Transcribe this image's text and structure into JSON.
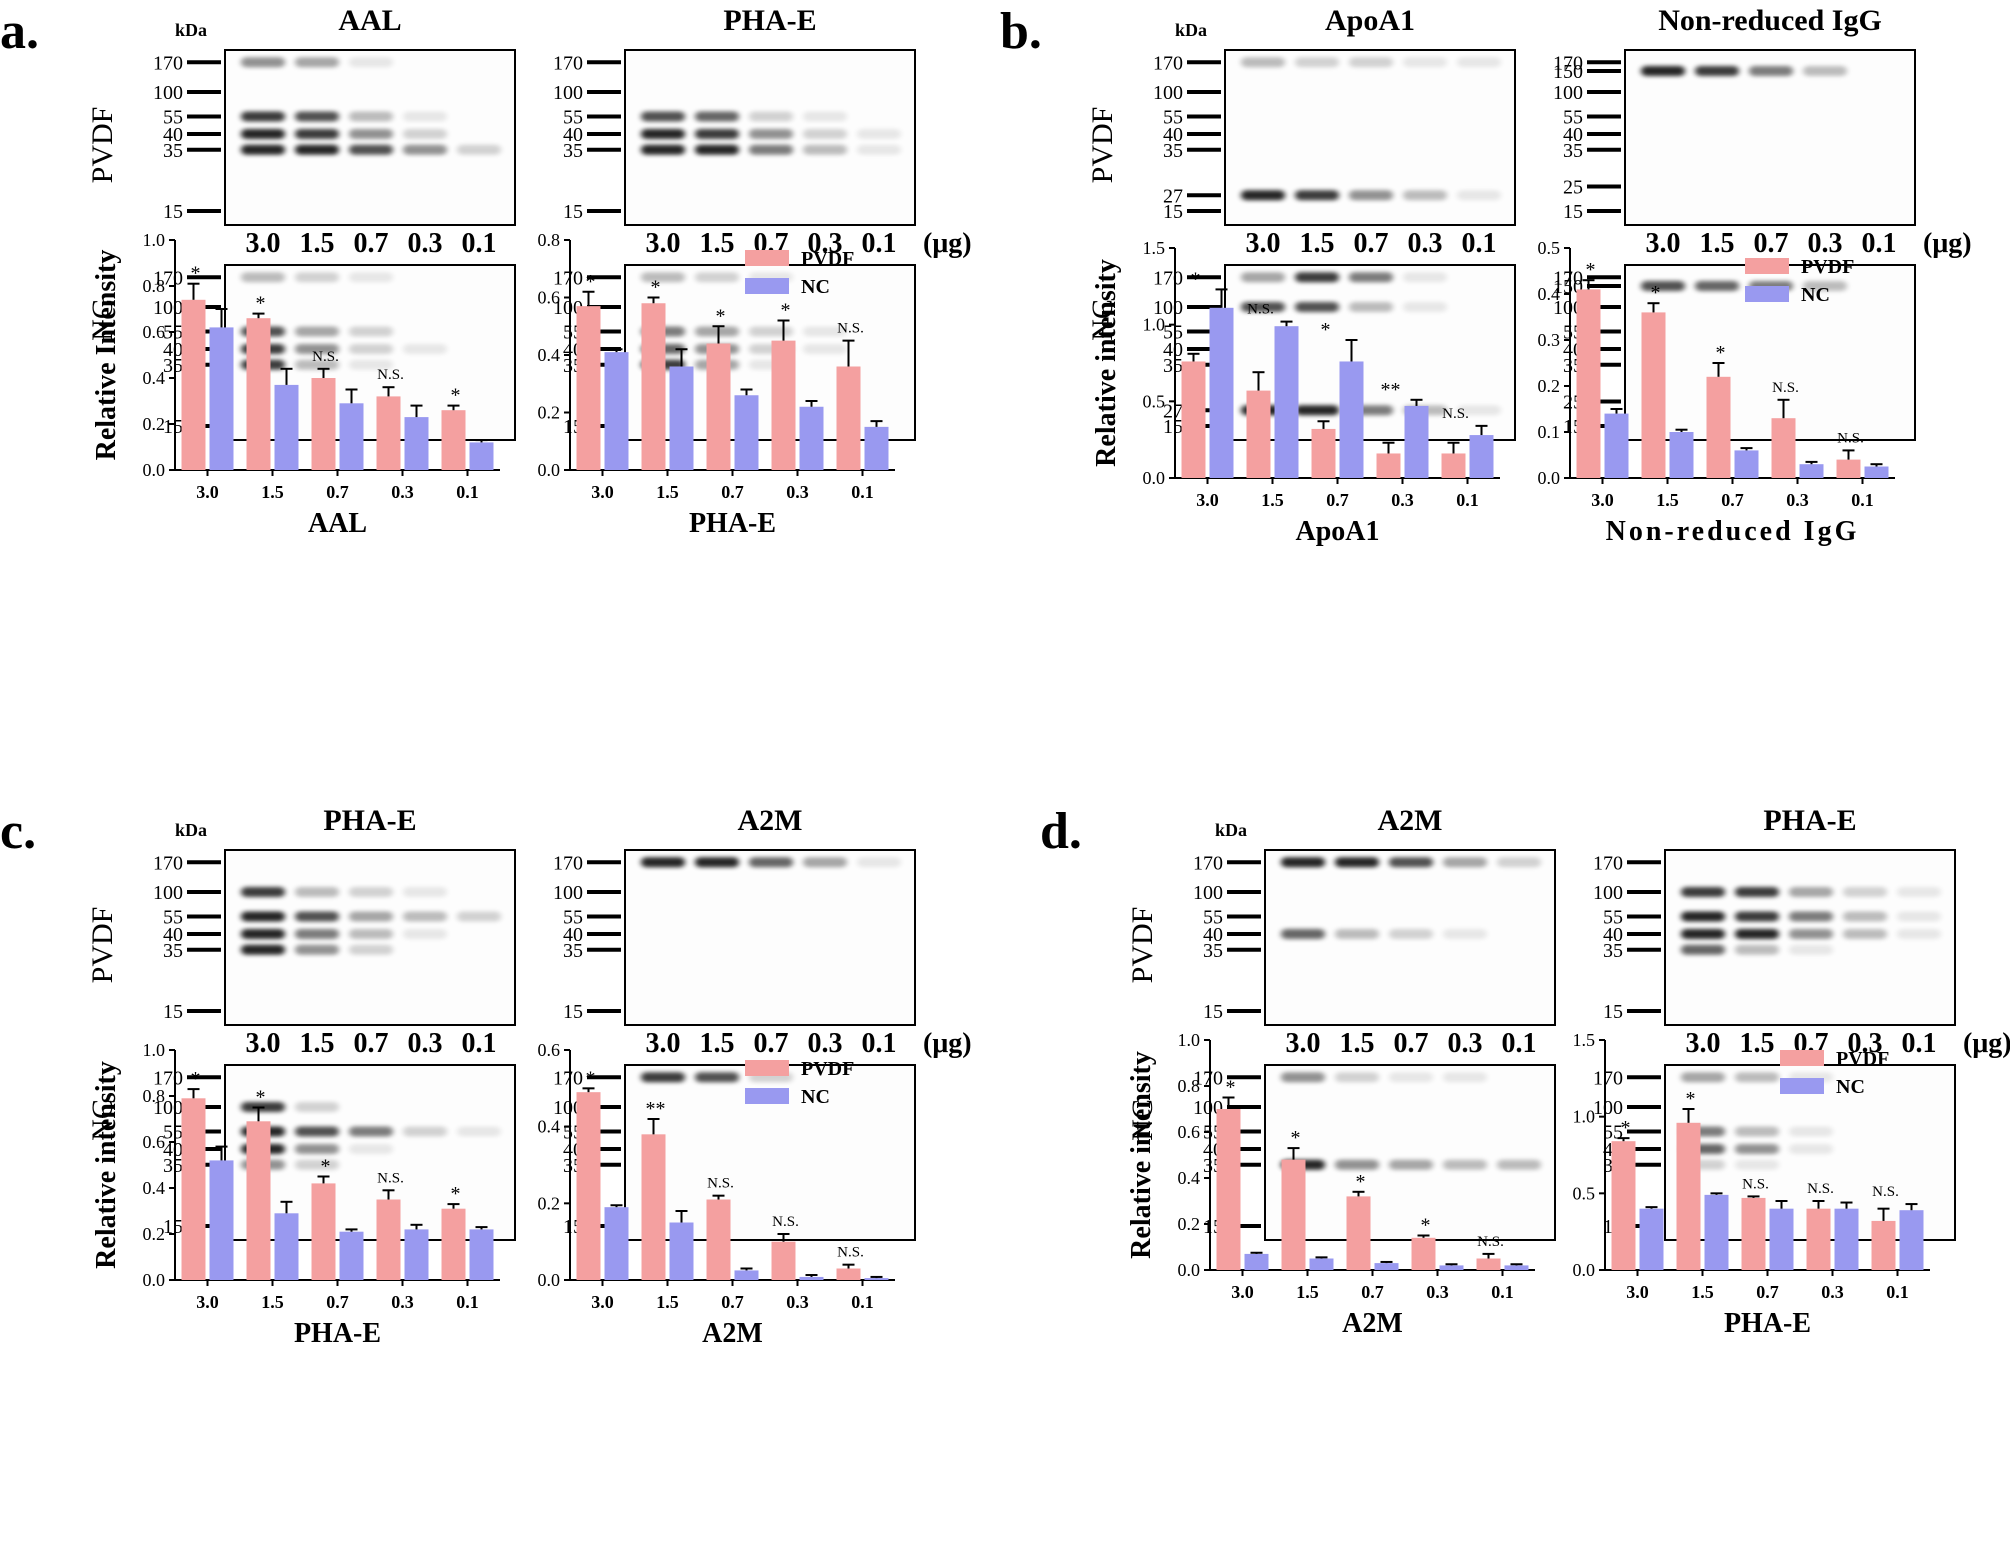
{
  "colors": {
    "pvdf": "#F4A0A0",
    "nc": "#9999F0",
    "err": "#000000"
  },
  "kda_label": "kDa",
  "row_labels": {
    "pvdf": "PVDF",
    "nc": "NC"
  },
  "loads_label": [
    "3.0",
    "1.5",
    "0.7",
    "0.3",
    "0.1"
  ],
  "unit_label": "(μg)",
  "legend": {
    "pvdf": "PVDF",
    "nc": "NC"
  },
  "panels": [
    {
      "letter": "a.",
      "blots": [
        {
          "title": "AAL",
          "pvdf_markers": [
            "170",
            "100",
            "55",
            "40",
            "35",
            "15"
          ],
          "nc_markers": [
            "170",
            "100",
            "55",
            "40",
            "35",
            "15"
          ]
        },
        {
          "title": "PHA-E",
          "pvdf_markers": [
            "170",
            "100",
            "55",
            "40",
            "35",
            "15"
          ],
          "nc_markers": [
            "170",
            "100",
            "55",
            "40",
            "35",
            "15"
          ]
        }
      ],
      "show_unit_on_blot": 1
    },
    {
      "letter": "b.",
      "blots": [
        {
          "title": "ApoA1",
          "pvdf_markers": [
            "170",
            "100",
            "55",
            "40",
            "35",
            "27",
            "15"
          ],
          "nc_markers": [
            "170",
            "100",
            "55",
            "40",
            "35",
            "27",
            "15"
          ]
        },
        {
          "title": "Non-reduced IgG",
          "pvdf_markers": [
            "170",
            "150",
            "100",
            "55",
            "40",
            "35",
            "25",
            "15"
          ],
          "nc_markers": [
            "170",
            "150",
            "100",
            "55",
            "40",
            "35",
            "25",
            "15"
          ]
        }
      ],
      "show_unit_on_blot": 1
    },
    {
      "letter": "c.",
      "blots": [
        {
          "title": "PHA-E",
          "pvdf_markers": [
            "170",
            "100",
            "55",
            "40",
            "35",
            "15"
          ],
          "nc_markers": [
            "170",
            "100",
            "55",
            "40",
            "35",
            "15"
          ]
        },
        {
          "title": "A2M",
          "pvdf_markers": [
            "170",
            "100",
            "55",
            "40",
            "35",
            "15"
          ],
          "nc_markers": [
            "170",
            "100",
            "55",
            "40",
            "35",
            "15"
          ]
        }
      ],
      "show_unit_on_blot": 1
    },
    {
      "letter": "d.",
      "blots": [
        {
          "title": "A2M",
          "pvdf_markers": [
            "170",
            "100",
            "55",
            "40",
            "35",
            "15"
          ],
          "nc_markers": [
            "170",
            "100",
            "55",
            "40",
            "35",
            "15"
          ]
        },
        {
          "title": "PHA-E",
          "pvdf_markers": [
            "170",
            "100",
            "55",
            "40",
            "35",
            "15"
          ],
          "nc_markers": [
            "170",
            "100",
            "55",
            "40",
            "35",
            "15"
          ]
        }
      ],
      "show_unit_on_blot": 1
    }
  ],
  "chart_data": [
    {
      "type": "bar",
      "panel": "a",
      "ylabel": "Relative Intensity",
      "xlabel": "AAL",
      "ylim": [
        0,
        1.0
      ],
      "yticks": [
        "0.0",
        "0.2",
        "0.4",
        "0.6",
        "0.8",
        "1.0"
      ],
      "categories": [
        "3.0",
        "1.5",
        "0.7",
        "0.3",
        "0.1"
      ],
      "series": [
        {
          "name": "PVDF",
          "values": [
            0.74,
            0.66,
            0.4,
            0.32,
            0.26
          ],
          "errors": [
            0.07,
            0.02,
            0.04,
            0.04,
            0.02
          ]
        },
        {
          "name": "NC",
          "values": [
            0.62,
            0.37,
            0.29,
            0.23,
            0.12
          ],
          "errors": [
            0.08,
            0.07,
            0.06,
            0.05,
            0.01
          ]
        }
      ],
      "annotations": [
        "*",
        "*",
        "N.S.",
        "N.S.",
        "*"
      ]
    },
    {
      "type": "bar",
      "panel": "a",
      "ylabel": "",
      "xlabel": "PHA-E",
      "ylim": [
        0,
        0.8
      ],
      "yticks": [
        "0.0",
        "0.2",
        "0.4",
        "0.6",
        "0.8"
      ],
      "categories": [
        "3.0",
        "1.5",
        "0.7",
        "0.3",
        "0.1"
      ],
      "series": [
        {
          "name": "PVDF",
          "values": [
            0.57,
            0.58,
            0.44,
            0.45,
            0.36
          ],
          "errors": [
            0.05,
            0.02,
            0.06,
            0.07,
            0.09
          ]
        },
        {
          "name": "NC",
          "values": [
            0.41,
            0.36,
            0.26,
            0.22,
            0.15
          ],
          "errors": [
            0.01,
            0.06,
            0.02,
            0.02,
            0.02
          ]
        }
      ],
      "annotations": [
        "*",
        "*",
        "*",
        "*",
        "N.S."
      ]
    },
    {
      "type": "bar",
      "panel": "b",
      "ylabel": "Relative intensity",
      "xlabel": "ApoA1",
      "ylim": [
        0,
        1.5
      ],
      "yticks": [
        "0.0",
        "0.5",
        "1.0",
        "1.5"
      ],
      "categories": [
        "3.0",
        "1.5",
        "0.7",
        "0.3",
        "0.1"
      ],
      "series": [
        {
          "name": "PVDF",
          "values": [
            0.76,
            0.57,
            0.32,
            0.16,
            0.16
          ],
          "errors": [
            0.05,
            0.12,
            0.05,
            0.07,
            0.07
          ]
        },
        {
          "name": "NC",
          "values": [
            1.11,
            0.99,
            0.76,
            0.47,
            0.28
          ],
          "errors": [
            0.12,
            0.03,
            0.14,
            0.04,
            0.06
          ]
        }
      ],
      "annotations": [
        "*",
        "N.S.",
        "*",
        "**",
        "N.S."
      ]
    },
    {
      "type": "bar",
      "panel": "b",
      "ylabel": "",
      "xlabel": "Non-reduced IgG",
      "ylim": [
        0,
        0.5
      ],
      "yticks": [
        "0.0",
        "0.1",
        "0.2",
        "0.3",
        "0.4",
        "0.5"
      ],
      "categories": [
        "3.0",
        "1.5",
        "0.7",
        "0.3",
        "0.1"
      ],
      "series": [
        {
          "name": "PVDF",
          "values": [
            0.41,
            0.36,
            0.22,
            0.13,
            0.04
          ],
          "errors": [
            0.02,
            0.02,
            0.03,
            0.04,
            0.02
          ]
        },
        {
          "name": "NC",
          "values": [
            0.14,
            0.1,
            0.06,
            0.03,
            0.025
          ],
          "errors": [
            0.01,
            0.005,
            0.005,
            0.005,
            0.005
          ]
        }
      ],
      "annotations": [
        "*",
        "*",
        "*",
        "N.S.",
        "N.S."
      ]
    },
    {
      "type": "bar",
      "panel": "c",
      "ylabel": "Relative intensity",
      "xlabel": "PHA-E",
      "ylim": [
        0,
        1.0
      ],
      "yticks": [
        "0.0",
        "0.2",
        "0.4",
        "0.6",
        "0.8",
        "1.0"
      ],
      "categories": [
        "3.0",
        "1.5",
        "0.7",
        "0.3",
        "0.1"
      ],
      "series": [
        {
          "name": "PVDF",
          "values": [
            0.79,
            0.69,
            0.42,
            0.35,
            0.31
          ],
          "errors": [
            0.04,
            0.06,
            0.03,
            0.04,
            0.02
          ]
        },
        {
          "name": "NC",
          "values": [
            0.52,
            0.29,
            0.21,
            0.22,
            0.22
          ],
          "errors": [
            0.06,
            0.05,
            0.01,
            0.02,
            0.01
          ]
        }
      ],
      "annotations": [
        "*",
        "*",
        "*",
        "N.S.",
        "*"
      ]
    },
    {
      "type": "bar",
      "panel": "c",
      "ylabel": "",
      "xlabel": "A2M",
      "ylim": [
        0,
        0.6
      ],
      "yticks": [
        "0.0",
        "0.2",
        "0.4",
        "0.6"
      ],
      "categories": [
        "3.0",
        "1.5",
        "0.7",
        "0.3",
        "0.1"
      ],
      "series": [
        {
          "name": "PVDF",
          "values": [
            0.49,
            0.38,
            0.21,
            0.1,
            0.03
          ],
          "errors": [
            0.01,
            0.04,
            0.01,
            0.02,
            0.01
          ]
        },
        {
          "name": "NC",
          "values": [
            0.19,
            0.15,
            0.025,
            0.008,
            0.005
          ],
          "errors": [
            0.005,
            0.03,
            0.005,
            0.005,
            0.003
          ]
        }
      ],
      "annotations": [
        "*",
        "**",
        "N.S.",
        "N.S.",
        "N.S."
      ]
    },
    {
      "type": "bar",
      "panel": "d",
      "ylabel": "Relative intensity",
      "xlabel": "A2M",
      "ylim": [
        0,
        1.0
      ],
      "yticks": [
        "0.0",
        "0.2",
        "0.4",
        "0.6",
        "0.8",
        "1.0"
      ],
      "categories": [
        "3.0",
        "1.5",
        "0.7",
        "0.3",
        "0.1"
      ],
      "series": [
        {
          "name": "PVDF",
          "values": [
            0.7,
            0.48,
            0.32,
            0.14,
            0.05
          ],
          "errors": [
            0.05,
            0.05,
            0.02,
            0.01,
            0.02
          ]
        },
        {
          "name": "NC",
          "values": [
            0.07,
            0.05,
            0.03,
            0.02,
            0.02
          ],
          "errors": [
            0.005,
            0.005,
            0.005,
            0.005,
            0.005
          ]
        }
      ],
      "annotations": [
        "*",
        "*",
        "*",
        "*",
        "N.S."
      ]
    },
    {
      "type": "bar",
      "panel": "d",
      "ylabel": "",
      "xlabel": "PHA-E",
      "ylim": [
        0,
        1.5
      ],
      "yticks": [
        "0.0",
        "0.5",
        "1.0",
        "1.5"
      ],
      "categories": [
        "3.0",
        "1.5",
        "0.7",
        "0.3",
        "0.1"
      ],
      "series": [
        {
          "name": "PVDF",
          "values": [
            0.84,
            0.96,
            0.47,
            0.4,
            0.32
          ],
          "errors": [
            0.02,
            0.09,
            0.01,
            0.05,
            0.08
          ]
        },
        {
          "name": "NC",
          "values": [
            0.4,
            0.49,
            0.4,
            0.4,
            0.39
          ],
          "errors": [
            0.01,
            0.01,
            0.05,
            0.04,
            0.04
          ]
        }
      ],
      "annotations": [
        "*",
        "*",
        "N.S.",
        "N.S.",
        "N.S."
      ]
    }
  ]
}
